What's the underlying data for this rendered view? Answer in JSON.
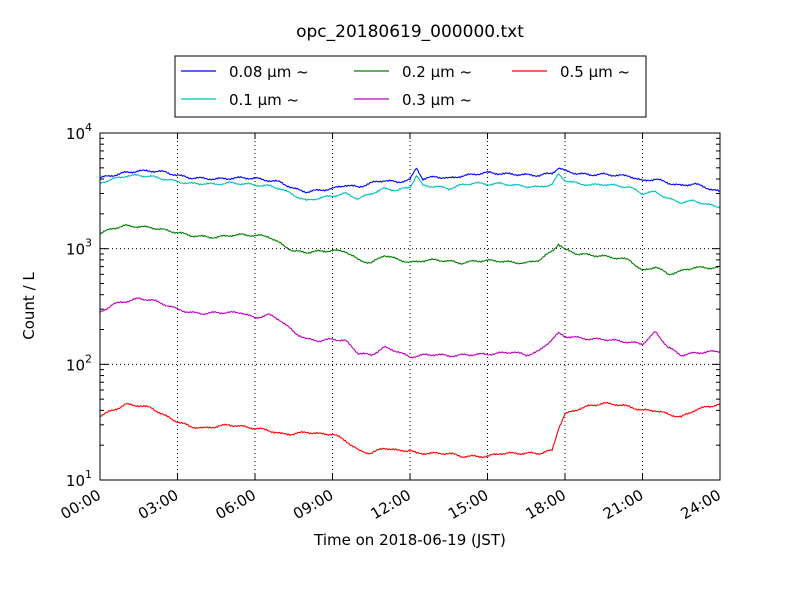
{
  "chart_data": {
    "type": "line",
    "title": "opc_20180619_000000.txt",
    "xlabel": "Time on 2018-06-19 (JST)",
    "ylabel": "Count / L",
    "yscale": "log",
    "xlim": [
      0,
      24
    ],
    "ylim": [
      10,
      10000
    ],
    "grid": true,
    "legend_position": "top, outside plot area",
    "x_ticks": [
      {
        "value": 0,
        "label": "00:00"
      },
      {
        "value": 3,
        "label": "03:00"
      },
      {
        "value": 6,
        "label": "06:00"
      },
      {
        "value": 9,
        "label": "09:00"
      },
      {
        "value": 12,
        "label": "12:00"
      },
      {
        "value": 15,
        "label": "15:00"
      },
      {
        "value": 18,
        "label": "18:00"
      },
      {
        "value": 21,
        "label": "21:00"
      },
      {
        "value": 24,
        "label": "24:00"
      }
    ],
    "y_ticks": [
      {
        "value": 10,
        "base": "10",
        "exp": "1"
      },
      {
        "value": 100,
        "base": "10",
        "exp": "2"
      },
      {
        "value": 1000,
        "base": "10",
        "exp": "3"
      },
      {
        "value": 10000,
        "base": "10",
        "exp": "4"
      }
    ],
    "x": [
      0,
      0.5,
      1,
      1.5,
      2,
      2.5,
      3,
      3.5,
      4,
      4.5,
      5,
      5.5,
      6,
      6.5,
      7,
      7.5,
      8,
      8.5,
      9,
      9.5,
      10,
      10.5,
      11,
      11.5,
      12,
      12.25,
      12.5,
      13,
      13.5,
      14,
      14.5,
      15,
      15.5,
      16,
      16.5,
      17,
      17.5,
      17.75,
      18,
      18.5,
      19,
      19.5,
      20,
      20.5,
      21,
      21.5,
      22,
      22.5,
      23,
      23.5,
      24
    ],
    "series": [
      {
        "name": "0.08 μm ~",
        "color": "#0000ff",
        "values": [
          4100,
          4300,
          4550,
          4700,
          4700,
          4600,
          4300,
          4100,
          4050,
          4000,
          4050,
          4100,
          4050,
          3900,
          3750,
          3300,
          3100,
          3200,
          3300,
          3550,
          3400,
          3700,
          3900,
          3750,
          3950,
          5000,
          4000,
          4200,
          4050,
          4250,
          4400,
          4550,
          4450,
          4400,
          4350,
          4300,
          4500,
          5000,
          4700,
          4450,
          4350,
          4400,
          4300,
          4250,
          3850,
          4000,
          3700,
          3500,
          3650,
          3350,
          3100
        ]
      },
      {
        "name": "0.1 μm ~",
        "color": "#00bfbf",
        "values": [
          3700,
          4000,
          4250,
          4300,
          4200,
          4000,
          3800,
          3650,
          3650,
          3600,
          3700,
          3650,
          3550,
          3500,
          3300,
          2900,
          2600,
          2750,
          2850,
          3000,
          2700,
          3000,
          3300,
          3200,
          3400,
          4300,
          3500,
          3450,
          3300,
          3550,
          3700,
          3600,
          3650,
          3550,
          3450,
          3400,
          3600,
          4400,
          3900,
          3650,
          3550,
          3600,
          3500,
          3400,
          3000,
          3100,
          2700,
          2500,
          2600,
          2400,
          2300
        ]
      },
      {
        "name": "0.2 μm ~",
        "color": "#008000",
        "values": [
          1350,
          1500,
          1580,
          1550,
          1520,
          1450,
          1380,
          1300,
          1270,
          1250,
          1300,
          1320,
          1300,
          1280,
          1100,
          950,
          930,
          950,
          960,
          950,
          800,
          750,
          880,
          810,
          760,
          770,
          790,
          800,
          780,
          750,
          780,
          790,
          780,
          760,
          750,
          800,
          950,
          1100,
          980,
          900,
          880,
          860,
          830,
          800,
          640,
          700,
          600,
          640,
          690,
          680,
          690
        ]
      },
      {
        "name": "0.3 μm ~",
        "color": "#bf00bf",
        "values": [
          280,
          330,
          350,
          370,
          360,
          330,
          300,
          280,
          275,
          280,
          280,
          280,
          250,
          270,
          240,
          190,
          165,
          160,
          165,
          160,
          125,
          120,
          140,
          130,
          115,
          118,
          120,
          122,
          118,
          120,
          122,
          122,
          125,
          128,
          120,
          130,
          165,
          185,
          175,
          170,
          165,
          165,
          160,
          155,
          150,
          190,
          140,
          120,
          125,
          128,
          130
        ]
      },
      {
        "name": "0.5 μm ~",
        "color": "#ff0000",
        "values": [
          36,
          40,
          45,
          44,
          42,
          36,
          32,
          29,
          28,
          29,
          30,
          29,
          28,
          27,
          25,
          25,
          26,
          25,
          25,
          22,
          18,
          17,
          19,
          18,
          18,
          17,
          17,
          17,
          17,
          16,
          16,
          16,
          17,
          17,
          17,
          17,
          18,
          28,
          37,
          41,
          44,
          46,
          45,
          43,
          40,
          40,
          37,
          35,
          40,
          43,
          45
        ]
      }
    ]
  }
}
